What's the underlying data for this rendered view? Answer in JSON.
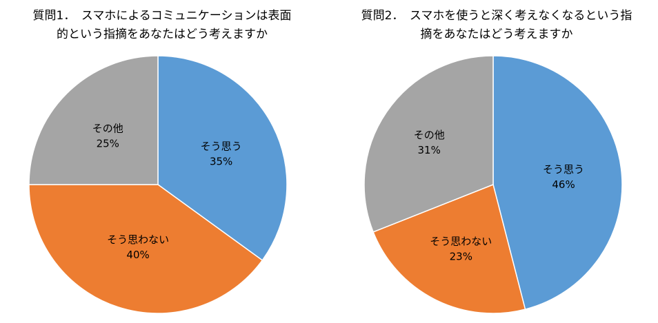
{
  "chart_data": [
    {
      "type": "pie",
      "title_line1": "質問1．　スマホによるコミュニケーションは表面",
      "title_line2": "的という指摘をあなたはどう考えますか",
      "slices": [
        {
          "label": "そう思う",
          "value": 35,
          "value_label": "35%",
          "color": "#5B9BD5"
        },
        {
          "label": "そう思わない",
          "value": 40,
          "value_label": "40%",
          "color": "#ED7D31"
        },
        {
          "label": "その他",
          "value": 25,
          "value_label": "25%",
          "color": "#A5A5A5"
        }
      ]
    },
    {
      "type": "pie",
      "title_line1": "質問2．　スマホを使うと深く考えなくなるという指",
      "title_line2": "摘をあなたはどう考えますか",
      "slices": [
        {
          "label": "そう思う",
          "value": 46,
          "value_label": "46%",
          "color": "#5B9BD5"
        },
        {
          "label": "そう思わない",
          "value": 23,
          "value_label": "23%",
          "color": "#ED7D31"
        },
        {
          "label": "その他",
          "value": 31,
          "value_label": "31%",
          "color": "#A5A5A5"
        }
      ]
    }
  ]
}
